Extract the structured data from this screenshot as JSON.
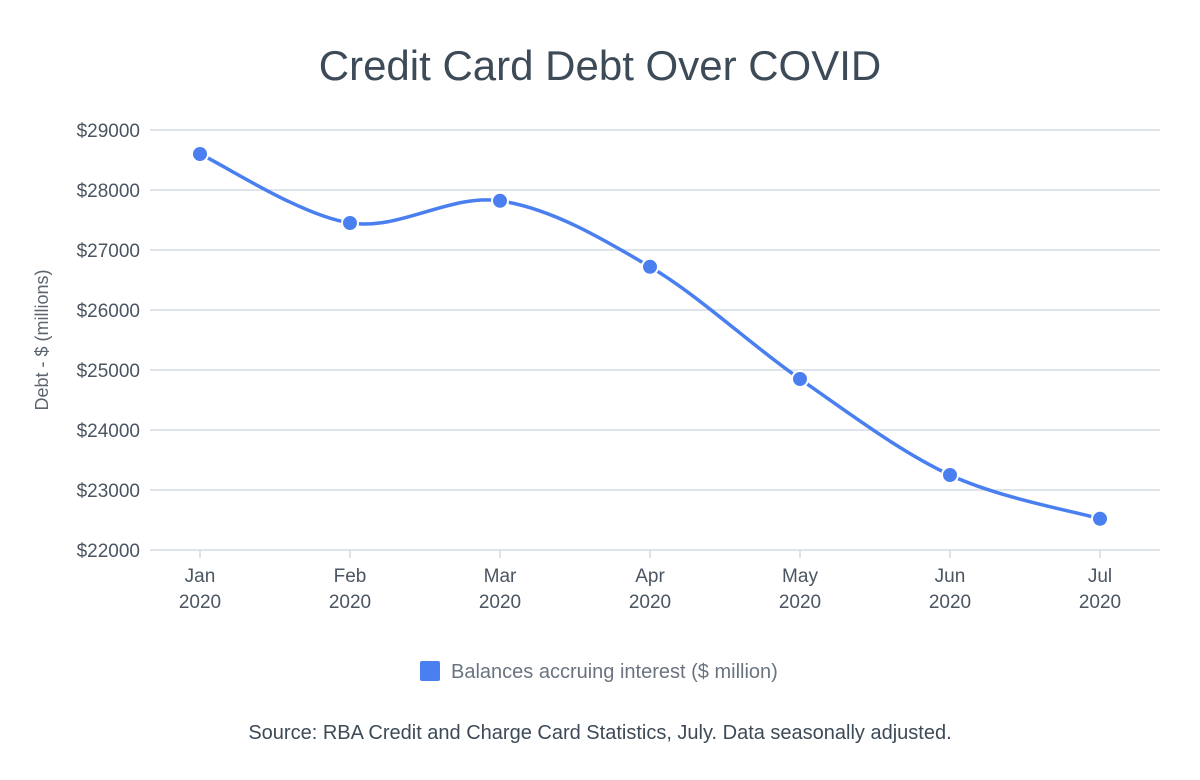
{
  "chart_data": {
    "type": "line",
    "title": "Credit Card Debt Over COVID",
    "xlabel": "",
    "ylabel": "Debt - $ (millions)",
    "categories": [
      [
        "Jan",
        "2020"
      ],
      [
        "Feb",
        "2020"
      ],
      [
        "Mar",
        "2020"
      ],
      [
        "Apr",
        "2020"
      ],
      [
        "May",
        "2020"
      ],
      [
        "Jun",
        "2020"
      ],
      [
        "Jul",
        "2020"
      ]
    ],
    "series": [
      {
        "name": "Balances accruing interest ($ million)",
        "color": "#4a7ff0",
        "values": [
          28600,
          27450,
          27820,
          26720,
          24850,
          23250,
          22520
        ]
      }
    ],
    "ylim": [
      22000,
      29000
    ],
    "yticks": [
      22000,
      23000,
      24000,
      25000,
      26000,
      27000,
      28000,
      29000
    ],
    "ytick_labels": [
      "$22000",
      "$23000",
      "$24000",
      "$25000",
      "$26000",
      "$27000",
      "$28000",
      "$29000"
    ],
    "grid": true,
    "legend_position": "bottom",
    "smooth": true
  },
  "source_note": "Source: RBA Credit and Charge Card Statistics, July. Data seasonally adjusted."
}
